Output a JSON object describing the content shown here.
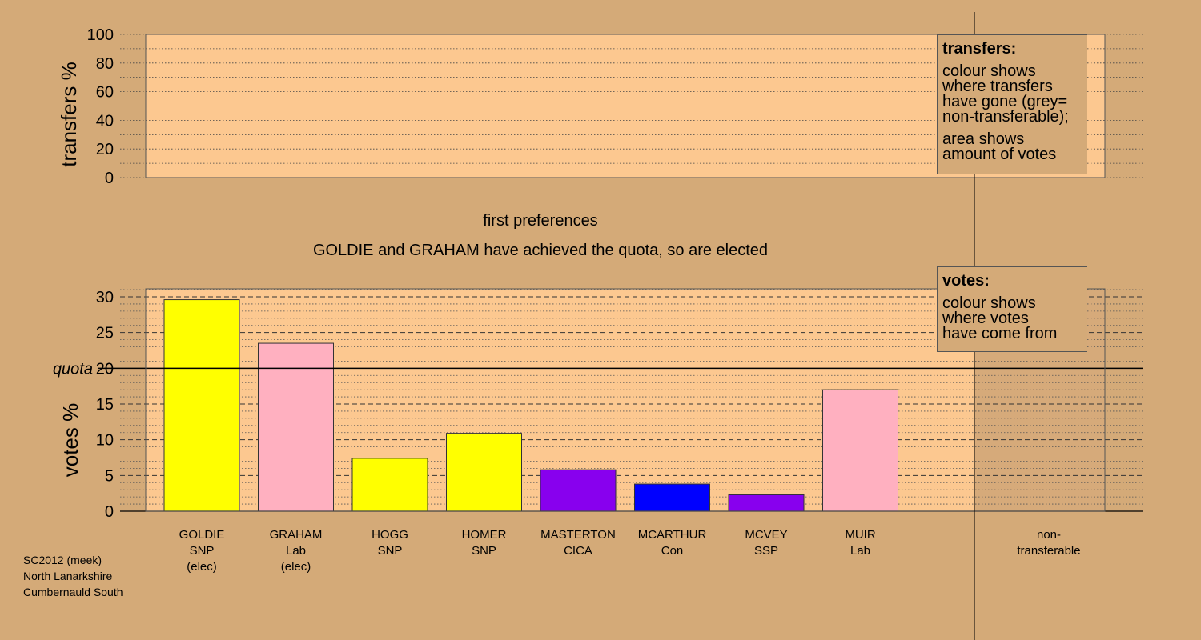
{
  "chart_data": [
    {
      "type": "bar",
      "panel": "transfers",
      "ylabel": "transfers %",
      "ylim": [
        0,
        100
      ],
      "yticks": [
        0,
        20,
        40,
        60,
        80,
        100
      ],
      "series": [],
      "legend": {
        "title": "transfers:",
        "paragraphs": [
          [
            "colour shows",
            "where transfers",
            "have gone (grey=",
            "non-transferable);"
          ],
          [
            "area shows",
            "amount of votes"
          ]
        ]
      }
    },
    {
      "type": "bar",
      "panel": "votes",
      "ylabel": "votes %",
      "ylim": [
        0,
        31
      ],
      "yticks": [
        0,
        5,
        10,
        15,
        20,
        25,
        30
      ],
      "quota": 20,
      "quota_label": "quota",
      "categories": [
        {
          "name": "GOLDIE",
          "party": "SNP",
          "status": "(elec)",
          "value": 29.6,
          "color": "#ffff00"
        },
        {
          "name": "GRAHAM",
          "party": "Lab",
          "status": "(elec)",
          "value": 23.5,
          "color": "#ffb0c0"
        },
        {
          "name": "HOGG",
          "party": "SNP",
          "status": "",
          "value": 7.4,
          "color": "#ffff00"
        },
        {
          "name": "HOMER",
          "party": "SNP",
          "status": "",
          "value": 10.9,
          "color": "#ffff00"
        },
        {
          "name": "MASTERTON",
          "party": "CICA",
          "status": "",
          "value": 5.8,
          "color": "#8800ee"
        },
        {
          "name": "MCARTHUR",
          "party": "Con",
          "status": "",
          "value": 3.8,
          "color": "#0000ff"
        },
        {
          "name": "MCVEY",
          "party": "SSP",
          "status": "",
          "value": 2.3,
          "color": "#8800ee"
        },
        {
          "name": "MUIR",
          "party": "Lab",
          "status": "",
          "value": 17.0,
          "color": "#ffb0c0"
        }
      ],
      "nontransferable_label": [
        "non-",
        "transferable"
      ],
      "legend": {
        "title": "votes:",
        "paragraphs": [
          [
            "colour shows",
            "where votes",
            "have come from"
          ]
        ]
      }
    }
  ],
  "stage": {
    "title": "first preferences",
    "message": "GOLDIE and GRAHAM have achieved the quota, so are elected"
  },
  "caption": [
    "SC2012 (meek)",
    "North Lanarkshire",
    "Cumbernauld South"
  ],
  "colors": {
    "background": "#d4aa78",
    "plot_fill": "#fcc890"
  }
}
